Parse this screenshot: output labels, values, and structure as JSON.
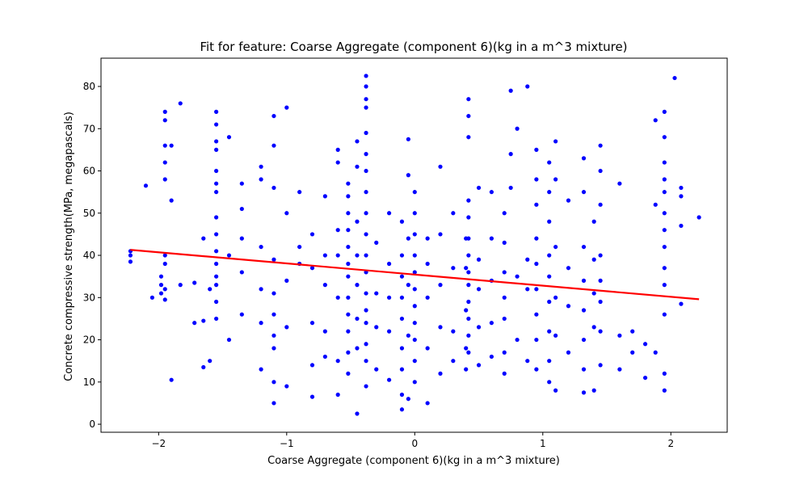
{
  "chart_data": {
    "type": "scatter",
    "title": "Fit for feature: Coarse Aggregate  (component 6)(kg in a m^3 mixture)",
    "x_label": "Coarse Aggregate  (component 6)(kg in a m^3 mixture)",
    "y_label": "Concrete compressive strength(MPa, megapascals)",
    "xlim": [
      -2.45,
      2.44
    ],
    "ylim": [
      -1.9,
      86.7
    ],
    "xticks": [
      {
        "value": -2,
        "label": "−2"
      },
      {
        "value": -1,
        "label": "−1"
      },
      0,
      1,
      2
    ],
    "yticks": [
      0,
      10,
      20,
      30,
      40,
      50,
      60,
      70,
      80
    ],
    "series": [
      {
        "type": "scatter",
        "color": "#0000ff",
        "x": [
          -2.22,
          -2.22,
          -2.22,
          -2.1,
          -2.05,
          -1.98,
          -1.98,
          -1.98,
          -1.95,
          -1.95,
          -1.95,
          -1.95,
          -1.95,
          -1.95,
          -1.95,
          -1.95,
          -1.95,
          -1.9,
          -1.9,
          -1.9,
          -1.83,
          -1.83,
          -1.72,
          -1.72,
          -1.65,
          -1.65,
          -1.65,
          -1.6,
          -1.6,
          -1.55,
          -1.55,
          -1.55,
          -1.55,
          -1.55,
          -1.55,
          -1.55,
          -1.55,
          -1.55,
          -1.55,
          -1.55,
          -1.55,
          -1.55,
          -1.55,
          -1.55,
          -1.45,
          -1.45,
          -1.45,
          -1.35,
          -1.35,
          -1.35,
          -1.35,
          -1.35,
          -1.2,
          -1.2,
          -1.2,
          -1.2,
          -1.2,
          -1.2,
          -1.1,
          -1.1,
          -1.1,
          -1.1,
          -1.1,
          -1.1,
          -1.1,
          -1.1,
          -1.1,
          -1.1,
          -1.0,
          -1.0,
          -1.0,
          -1.0,
          -1.0,
          -0.9,
          -0.9,
          -0.9,
          -0.8,
          -0.8,
          -0.8,
          -0.8,
          -0.8,
          -0.7,
          -0.7,
          -0.7,
          -0.7,
          -0.7,
          -0.6,
          -0.6,
          -0.6,
          -0.6,
          -0.6,
          -0.6,
          -0.6,
          -0.52,
          -0.52,
          -0.52,
          -0.52,
          -0.52,
          -0.52,
          -0.52,
          -0.52,
          -0.52,
          -0.52,
          -0.52,
          -0.52,
          -0.45,
          -0.45,
          -0.45,
          -0.45,
          -0.45,
          -0.45,
          -0.45,
          -0.45,
          -0.38,
          -0.38,
          -0.38,
          -0.38,
          -0.38,
          -0.38,
          -0.38,
          -0.38,
          -0.38,
          -0.38,
          -0.38,
          -0.38,
          -0.38,
          -0.38,
          -0.38,
          -0.38,
          -0.38,
          -0.38,
          -0.3,
          -0.3,
          -0.3,
          -0.3,
          -0.2,
          -0.2,
          -0.2,
          -0.2,
          -0.2,
          -0.1,
          -0.1,
          -0.1,
          -0.1,
          -0.1,
          -0.1,
          -0.1,
          -0.1,
          -0.1,
          -0.05,
          -0.05,
          -0.05,
          -0.05,
          -0.05,
          -0.05,
          0,
          0,
          0,
          0,
          0,
          0,
          0,
          0,
          0,
          0,
          0,
          0.1,
          0.1,
          0.1,
          0.1,
          0.1,
          0.2,
          0.2,
          0.2,
          0.2,
          0.2,
          0.3,
          0.3,
          0.3,
          0.3,
          0.4,
          0.4,
          0.4,
          0.4,
          0.4,
          0.42,
          0.42,
          0.42,
          0.42,
          0.42,
          0.42,
          0.42,
          0.42,
          0.42,
          0.42,
          0.42,
          0.42,
          0.42,
          0.5,
          0.5,
          0.5,
          0.5,
          0.5,
          0.6,
          0.6,
          0.6,
          0.6,
          0.6,
          0.7,
          0.7,
          0.7,
          0.7,
          0.7,
          0.7,
          0.7,
          0.75,
          0.75,
          0.75,
          0.8,
          0.8,
          0.8,
          0.88,
          0.88,
          0.88,
          0.88,
          0.95,
          0.95,
          0.95,
          0.95,
          0.95,
          0.95,
          0.95,
          0.95,
          0.95,
          1.05,
          1.05,
          1.05,
          1.05,
          1.05,
          1.05,
          1.05,
          1.05,
          1.05,
          1.1,
          1.1,
          1.1,
          1.1,
          1.1,
          1.1,
          1.2,
          1.2,
          1.2,
          1.2,
          1.32,
          1.32,
          1.32,
          1.32,
          1.32,
          1.32,
          1.32,
          1.32,
          1.4,
          1.4,
          1.4,
          1.4,
          1.4,
          1.45,
          1.45,
          1.45,
          1.45,
          1.45,
          1.45,
          1.45,
          1.45,
          1.6,
          1.6,
          1.6,
          1.7,
          1.7,
          1.8,
          1.8,
          1.88,
          1.88,
          1.88,
          1.95,
          1.95,
          1.95,
          1.95,
          1.95,
          1.95,
          1.95,
          1.95,
          1.95,
          1.95,
          1.95,
          1.95,
          1.95,
          2.03,
          2.08,
          2.08,
          2.08,
          2.08,
          2.22
        ],
        "values": [
          41,
          38.5,
          40,
          56.5,
          30,
          31,
          33,
          35,
          74,
          72,
          66,
          62,
          58,
          40,
          38,
          32,
          29.5,
          66,
          53,
          10.5,
          76,
          33,
          33.5,
          24,
          44,
          24.5,
          13.5,
          32,
          15,
          74,
          71,
          67,
          65,
          60,
          57,
          55,
          49,
          45,
          41,
          38,
          35,
          33,
          29,
          25,
          68,
          40,
          20,
          57,
          51,
          44,
          36,
          26,
          61,
          58,
          42,
          32,
          24,
          13,
          73,
          66,
          56,
          39,
          31,
          26,
          21,
          18,
          10,
          5,
          75,
          50,
          34,
          23,
          9,
          55,
          42,
          38,
          45,
          37,
          24,
          14,
          6.5,
          54,
          40,
          33,
          22,
          16,
          65,
          62,
          46,
          40,
          30,
          15,
          7,
          57,
          54,
          50,
          46,
          42,
          38,
          35,
          30,
          26,
          22,
          17,
          12,
          67,
          61,
          48,
          40,
          33,
          25,
          18,
          2.5,
          82.5,
          80,
          77,
          75,
          69,
          64,
          60,
          55,
          50,
          45,
          40,
          36,
          31,
          27,
          24,
          19,
          15,
          9,
          43,
          31,
          23,
          13,
          50,
          38,
          30,
          22,
          10.5,
          48,
          40,
          35,
          30,
          25,
          18,
          13,
          7,
          3.5,
          67.5,
          59,
          44,
          33,
          21,
          6,
          55,
          50,
          45,
          40,
          36,
          32,
          28,
          24,
          20,
          15,
          10,
          44,
          38,
          30,
          18,
          5,
          61,
          45,
          33,
          23,
          12,
          50,
          37,
          22,
          15,
          44,
          37,
          27,
          18,
          13,
          77,
          73,
          68,
          53,
          49,
          44,
          40,
          36,
          33,
          29,
          25,
          21,
          17,
          56,
          39,
          32,
          23,
          14,
          55,
          44,
          34,
          24,
          16,
          50,
          43,
          36,
          30,
          25,
          17,
          12,
          79,
          64,
          56,
          70,
          35,
          20,
          80,
          39,
          32,
          15,
          65,
          58,
          52,
          44,
          38,
          32,
          26,
          20,
          13,
          62,
          55,
          48,
          40,
          35,
          29,
          22,
          15,
          10,
          67,
          58,
          42,
          30,
          21,
          8,
          53,
          37,
          28,
          17,
          63,
          55,
          42,
          34,
          27,
          20,
          13,
          7.5,
          48,
          39,
          31,
          23,
          8,
          66,
          60,
          52,
          40,
          34,
          29,
          22,
          14,
          57,
          21,
          13,
          22,
          17,
          19,
          11,
          72,
          52,
          17,
          74,
          68,
          62,
          58,
          55,
          50,
          46,
          42,
          37,
          33,
          26,
          12,
          8,
          82,
          56,
          54,
          47,
          28.5,
          49
        ]
      },
      {
        "type": "line",
        "color": "#ff0000",
        "x": [
          -2.22,
          2.22
        ],
        "values": [
          41.3,
          29.6
        ]
      }
    ]
  }
}
